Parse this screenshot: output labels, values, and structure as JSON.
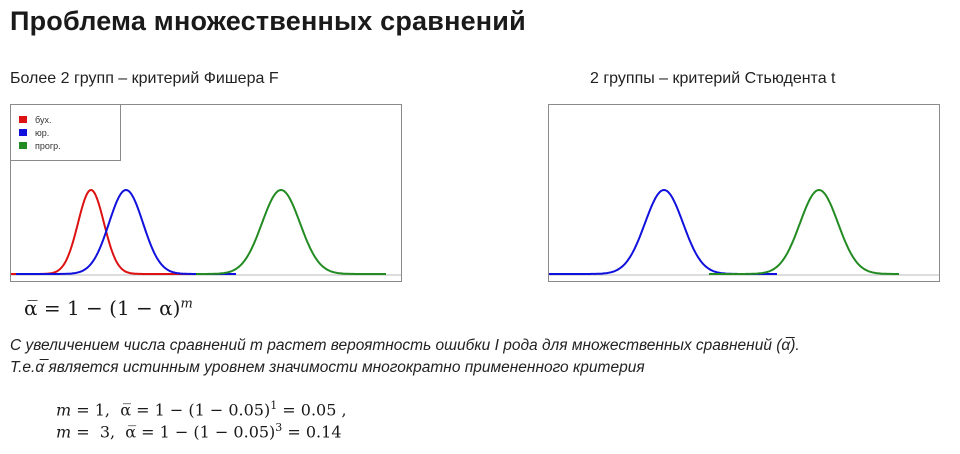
{
  "title": "Проблема множественных сравнений",
  "left_caption": "Более 2 групп – критерий Фишера F",
  "right_caption": "2 группы – критерий Стьюдента t",
  "legend": [
    {
      "label": "бух.",
      "color": "#dd1111"
    },
    {
      "label": "юр.",
      "color": "#1111dd"
    },
    {
      "label": "прогр.",
      "color": "#228b22"
    }
  ],
  "formula": {
    "lhs": "α̅ = 1 − (1 − α)",
    "exp": "m"
  },
  "text": {
    "line1": "С увеличением числа сравнений m растет вероятность ошибки I рода для множественных сравнений (α̅).",
    "line2": "Т.е.α̅ является истинным уровнем значимости многократно примененного критерия"
  },
  "examples": [
    {
      "m": "m",
      "eq1": " = 1,  ",
      "abar": "α̅",
      "mid": " = 1 − (1 − 0.05)",
      "exp": "1",
      "result": " = 0.05 ,"
    },
    {
      "m": "m",
      "eq1": " =  3,  ",
      "abar": "α̅",
      "mid": " = 1 − (1 − 0.05)",
      "exp": "3",
      "result": " = 0.14"
    }
  ],
  "chart_data": [
    {
      "type": "line",
      "series": [
        {
          "name": "бух.",
          "color": "#dd1111",
          "mean": 80,
          "sd": 13,
          "xmin": 0,
          "xmax": 180
        },
        {
          "name": "юр.",
          "color": "#1111dd",
          "mean": 115,
          "sd": 17,
          "xmin": 5,
          "xmax": 225
        },
        {
          "name": "прогр.",
          "color": "#228b22",
          "mean": 270,
          "sd": 19,
          "xmin": 185,
          "xmax": 375
        }
      ],
      "xlim": [
        0,
        390
      ],
      "legend_position": "top-left"
    },
    {
      "type": "line",
      "series": [
        {
          "color": "#1111dd",
          "mean": 115,
          "sd": 19,
          "xmin": 0,
          "xmax": 228
        },
        {
          "color": "#228b22",
          "mean": 270,
          "sd": 19,
          "xmin": 160,
          "xmax": 350
        }
      ],
      "xlim": [
        0,
        390
      ]
    }
  ]
}
